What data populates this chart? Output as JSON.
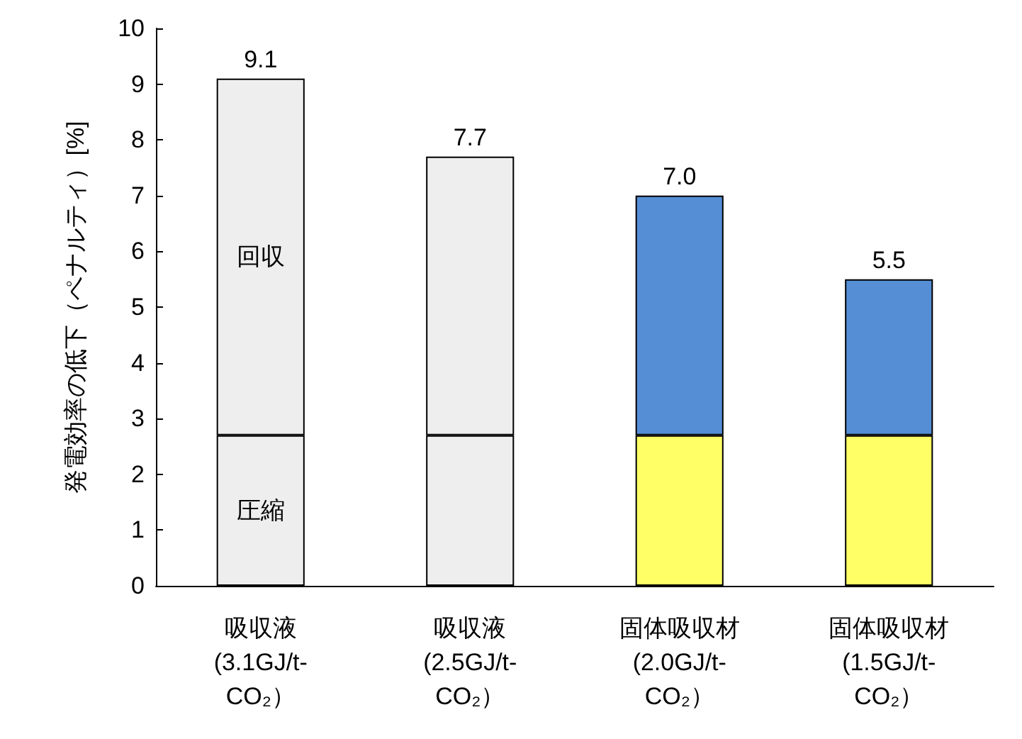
{
  "chart_data": {
    "type": "bar",
    "ylabel": "発電効率の低下（ペナルティ）[%]",
    "categories": [
      "吸収液\n(3.1GJ/t-\nCO₂）",
      "吸収液\n(2.5GJ/t-\nCO₂）",
      "固体吸収材\n(2.0GJ/t-\nCO₂）",
      "固体吸収材\n(1.5GJ/t-\nCO₂）"
    ],
    "stacked": true,
    "series": [
      {
        "colors": [
          "#eeeeee",
          "#eeeeee",
          "#ffff66",
          "#ffff66"
        ],
        "values": [
          2.7,
          2.7,
          2.7,
          2.7
        ]
      },
      {
        "colors": [
          "#eeeeee",
          "#eeeeee",
          "#558ed5",
          "#558ed5"
        ],
        "values": [
          6.4,
          5.0,
          4.3,
          2.8
        ]
      }
    ],
    "totals": [
      "9.1",
      "7.7",
      "7.0",
      "5.5"
    ],
    "annotations": [
      "回収",
      "圧縮"
    ],
    "ylim": [
      0,
      10
    ],
    "yticks": [
      0,
      1,
      2,
      3,
      4,
      5,
      6,
      7,
      8,
      9,
      10
    ],
    "grid": false
  }
}
